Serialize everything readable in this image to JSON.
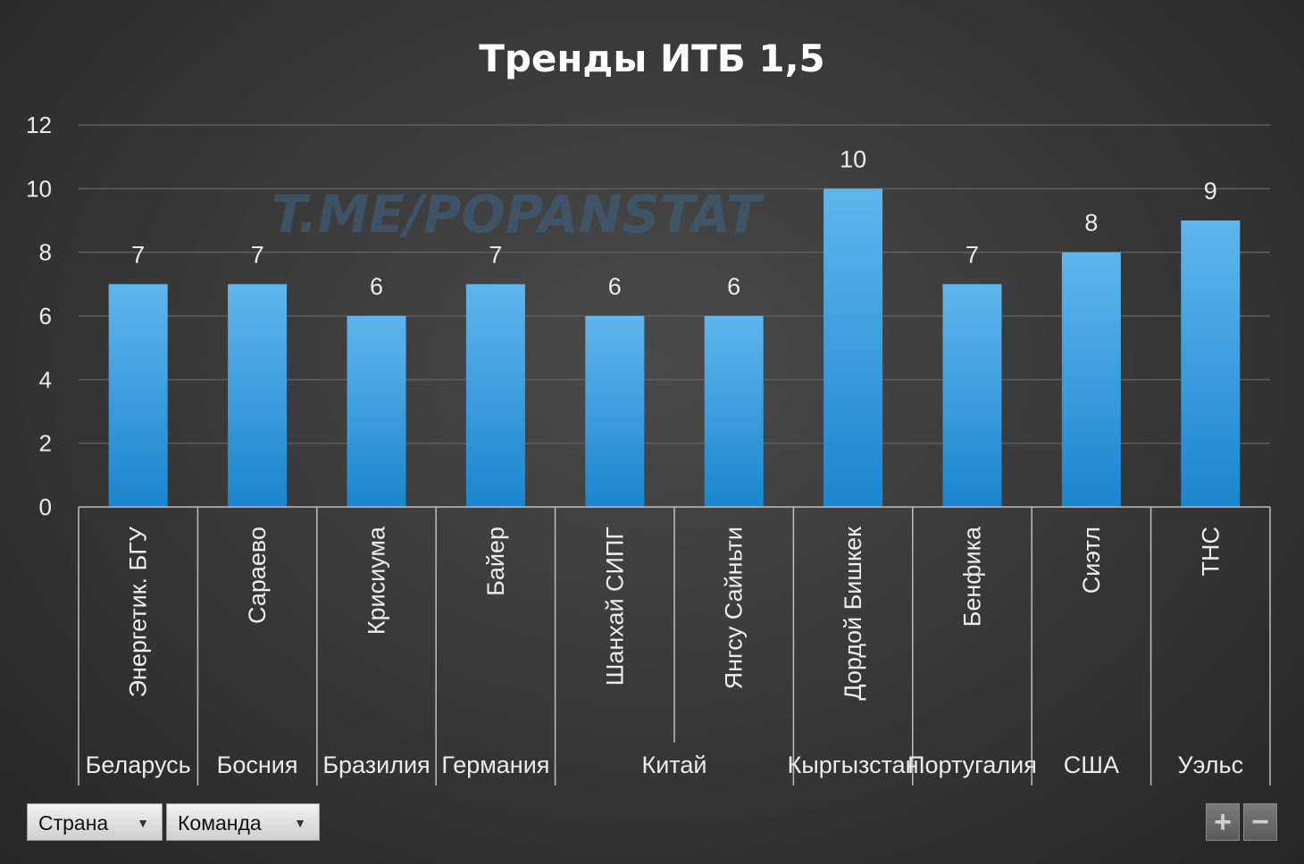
{
  "chart_data": {
    "type": "bar",
    "title": "Тренды  ИТБ 1,5",
    "watermark": "T.ME/POPANSTAT",
    "ylim": [
      0,
      12
    ],
    "yticks": [
      0,
      2,
      4,
      6,
      8,
      10,
      12
    ],
    "categories": [
      "Энергетик. БГУ",
      "Сараево",
      "Крисиума",
      "Байер",
      "Шанхай СИПГ",
      "Янгсу Сайньти",
      "Дордой Бишкек",
      "Бенфика",
      "Сиэтл",
      "ТНС"
    ],
    "groups": [
      {
        "label": "Беларусь",
        "span": 1
      },
      {
        "label": "Босния",
        "span": 1
      },
      {
        "label": "Бразилия",
        "span": 1
      },
      {
        "label": "Германия",
        "span": 1
      },
      {
        "label": "Китай",
        "span": 2
      },
      {
        "label": "Кыргызстан",
        "span": 1
      },
      {
        "label": "Португалия",
        "span": 1
      },
      {
        "label": "США",
        "span": 1
      },
      {
        "label": "Уэльс",
        "span": 1
      }
    ],
    "values": [
      7,
      7,
      6,
      7,
      6,
      6,
      10,
      7,
      8,
      9
    ],
    "grid": true,
    "bar_color": "#3aa0e0",
    "bar_color_top": "#5fb5ec",
    "bar_color_bottom": "#1a86cf"
  },
  "controls": {
    "country_filter": "Страна",
    "team_filter": "Команда",
    "zoom_in": "+",
    "zoom_out": "−"
  }
}
